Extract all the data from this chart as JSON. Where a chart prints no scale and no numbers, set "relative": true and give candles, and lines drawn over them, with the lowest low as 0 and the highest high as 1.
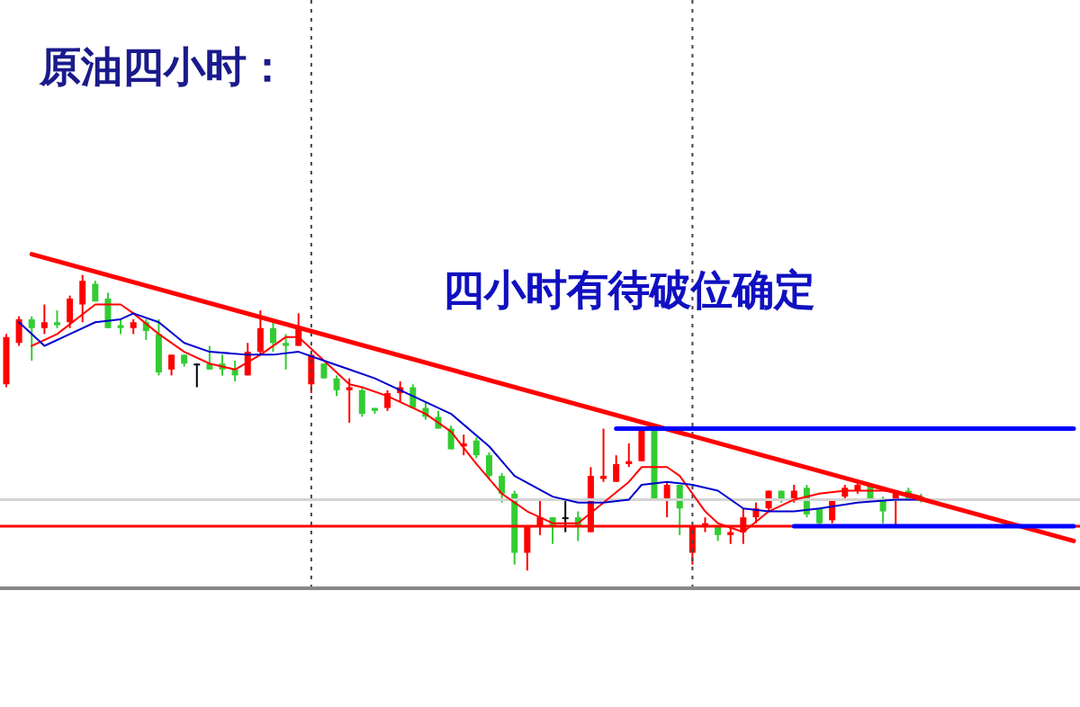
{
  "chart_data": {
    "type": "candlestick",
    "title": "原油四小时：",
    "annotations": [
      "四小时有待破位确定"
    ],
    "relative": true,
    "categories": [
      null,
      null,
      null,
      null,
      null,
      null,
      null,
      null,
      null,
      null,
      null,
      null,
      null,
      null,
      null,
      null,
      null,
      null,
      null,
      null,
      null,
      null,
      null,
      null,
      null,
      null,
      null,
      null,
      null,
      null,
      null,
      null,
      null,
      null,
      null,
      null,
      null,
      null,
      null,
      null,
      null,
      null,
      null,
      null,
      null,
      null,
      null,
      null,
      null,
      null,
      null,
      null,
      null,
      null,
      null,
      null,
      null,
      null,
      null,
      null,
      null,
      null,
      null,
      null,
      null,
      null,
      null,
      null,
      null,
      null,
      null,
      null,
      null,
      null,
      null,
      null,
      null,
      null,
      null,
      null,
      null,
      null,
      null,
      null,
      null
    ],
    "ohlc": [
      [
        0.63,
        0.8,
        0.62,
        0.79
      ],
      [
        0.77,
        0.86,
        0.76,
        0.85
      ],
      [
        0.85,
        0.86,
        0.71,
        0.82
      ],
      [
        0.82,
        0.9,
        0.8,
        0.84
      ],
      [
        0.84,
        0.88,
        0.82,
        0.83
      ],
      [
        0.84,
        0.93,
        0.82,
        0.92
      ],
      [
        0.9,
        1,
        0.84,
        0.98
      ],
      [
        0.97,
        0.98,
        0.91,
        0.91
      ],
      [
        0.92,
        0.94,
        0.82,
        0.82
      ],
      [
        0.83,
        0.85,
        0.8,
        0.82
      ],
      [
        0.82,
        0.85,
        0.8,
        0.84
      ],
      [
        0.84,
        0.85,
        0.78,
        0.81
      ],
      [
        0.8,
        0.85,
        0.66,
        0.67
      ],
      [
        0.68,
        0.73,
        0.66,
        0.73
      ],
      [
        0.73,
        0.73,
        0.69,
        0.7
      ],
      [
        0.7,
        0.7,
        0.62,
        0.7
      ],
      [
        0.7,
        0.76,
        0.68,
        0.68
      ],
      [
        0.7,
        0.73,
        0.66,
        0.68
      ],
      [
        0.68,
        0.71,
        0.64,
        0.66
      ],
      [
        0.66,
        0.77,
        0.66,
        0.74
      ],
      [
        0.74,
        0.88,
        0.73,
        0.82
      ],
      [
        0.82,
        0.85,
        0.74,
        0.77
      ],
      [
        0.77,
        0.8,
        0.68,
        0.76
      ],
      [
        0.76,
        0.87,
        0.76,
        0.82
      ],
      [
        0.63,
        0.73,
        0.6,
        0.73
      ],
      [
        0.7,
        0.7,
        0.65,
        0.65
      ],
      [
        0.65,
        0.66,
        0.59,
        0.61
      ],
      [
        0.61,
        0.65,
        0.5,
        0.62
      ],
      [
        0.61,
        0.62,
        0.52,
        0.53
      ],
      [
        0.55,
        0.55,
        0.53,
        0.54
      ],
      [
        0.55,
        0.61,
        0.54,
        0.6
      ],
      [
        0.6,
        0.64,
        0.57,
        0.62
      ],
      [
        0.62,
        0.63,
        0.55,
        0.55
      ],
      [
        0.55,
        0.57,
        0.51,
        0.52
      ],
      [
        0.52,
        0.54,
        0.48,
        0.48
      ],
      [
        0.48,
        0.49,
        0.41,
        0.41
      ],
      [
        0.42,
        0.46,
        0.39,
        0.43
      ],
      [
        0.44,
        0.45,
        0.38,
        0.39
      ],
      [
        0.39,
        0.4,
        0.31,
        0.32
      ],
      [
        0.32,
        0.33,
        0.23,
        0.26
      ],
      [
        0.26,
        0.27,
        0.02,
        0.06
      ],
      [
        0.06,
        0.15,
        0,
        0.15
      ],
      [
        0.15,
        0.24,
        0.12,
        0.18
      ],
      [
        0.18,
        0.18,
        0.09,
        0.15
      ],
      [
        0.18,
        0.24,
        0.13,
        0.18
      ],
      [
        0.18,
        0.2,
        0.1,
        0.15
      ],
      [
        0.13,
        0.35,
        0.13,
        0.32
      ],
      [
        0.31,
        0.48,
        0.3,
        0.32
      ],
      [
        0.3,
        0.39,
        0.3,
        0.36
      ],
      [
        0.36,
        0.43,
        0.35,
        0.37
      ],
      [
        0.37,
        0.48,
        0.37,
        0.48
      ],
      [
        0.48,
        0.49,
        0.24,
        0.24
      ],
      [
        0.24,
        0.3,
        0.18,
        0.29
      ],
      [
        0.29,
        0.29,
        0.12,
        0.21
      ],
      [
        0.06,
        0.15,
        0.02,
        0.15
      ],
      [
        0.15,
        0.18,
        0.13,
        0.16
      ],
      [
        0.15,
        0.15,
        0.1,
        0.12
      ],
      [
        0.12,
        0.15,
        0.09,
        0.13
      ],
      [
        0.13,
        0.21,
        0.09,
        0.18
      ],
      [
        0.18,
        0.23,
        0.16,
        0.21
      ],
      [
        0.21,
        0.27,
        0.2,
        0.27
      ],
      [
        0.27,
        0.27,
        0.23,
        0.24
      ],
      [
        0.24,
        0.29,
        0.23,
        0.27
      ],
      [
        0.28,
        0.29,
        0.18,
        0.19
      ],
      [
        0.21,
        0.21,
        0.15,
        0.16
      ],
      [
        0.17,
        0.24,
        0.16,
        0.24
      ],
      [
        0.25,
        0.29,
        0.24,
        0.28
      ],
      [
        0.27,
        0.3,
        0.26,
        0.29
      ],
      [
        0.29,
        0.29,
        0.24,
        0.24
      ],
      [
        0.24,
        0.25,
        0.16,
        0.2
      ],
      [
        0.24,
        0.27,
        0.15,
        0.27
      ],
      [
        0.27,
        0.28,
        0.24,
        0.24
      ],
      [
        0.25,
        0.26,
        0.23,
        0.24
      ],
      null,
      null,
      null,
      null,
      null,
      null,
      null,
      null,
      null,
      null,
      null,
      null
    ],
    "colors": [
      "#ff0000",
      "#ff0000",
      "#33cc33",
      "#ff0000",
      "#33cc33",
      "#ff0000",
      "#ff0000",
      "#33cc33",
      "#33cc33",
      "#33cc33",
      "#ff0000",
      "#33cc33",
      "#33cc33",
      "#ff0000",
      "#33cc33",
      "#000000",
      "#33cc33",
      "#33cc33",
      "#33cc33",
      "#ff0000",
      "#ff0000",
      "#33cc33",
      "#33cc33",
      "#ff0000",
      "#ff0000",
      "#33cc33",
      "#33cc33",
      "#ff0000",
      "#33cc33",
      "#33cc33",
      "#ff0000",
      "#ff0000",
      "#33cc33",
      "#33cc33",
      "#33cc33",
      "#33cc33",
      "#ff0000",
      "#33cc33",
      "#33cc33",
      "#33cc33",
      "#33cc33",
      "#ff0000",
      "#ff0000",
      "#33cc33",
      "#000000",
      "#33cc33",
      "#ff0000",
      "#ff0000",
      "#ff0000",
      "#ff0000",
      "#ff0000",
      "#33cc33",
      "#ff0000",
      "#33cc33",
      "#ff0000",
      "#ff0000",
      "#33cc33",
      "#ff0000",
      "#ff0000",
      "#ff0000",
      "#ff0000",
      "#33cc33",
      "#ff0000",
      "#33cc33",
      "#33cc33",
      "#ff0000",
      "#ff0000",
      "#ff0000",
      "#33cc33",
      "#33cc33",
      "#ff0000",
      "#33cc33",
      "#33cc33",
      null,
      null,
      null,
      null,
      null,
      null,
      null,
      null,
      null,
      null,
      null,
      null
    ],
    "series": [
      {
        "type": "line",
        "color": "#ff0000",
        "values": [
          null,
          null,
          0.76,
          null,
          0.8,
          null,
          null,
          0.9,
          null,
          0.9,
          0.87,
          null,
          0.8,
          null,
          0.74,
          null,
          0.7,
          null,
          0.68,
          null,
          0.73,
          null,
          0.79,
          0.79,
          null,
          0.71,
          null,
          0.63,
          0.62,
          null,
          0.59,
          null,
          null,
          0.53,
          null,
          0.47,
          null,
          0.36,
          null,
          0.26,
          null,
          0.2,
          null,
          0.16,
          null,
          0.16,
          null,
          0.23,
          null,
          0.3,
          0.35,
          null,
          0.35,
          0.32,
          null,
          0.2,
          0.16,
          null,
          0.13,
          null,
          0.2,
          null,
          0.24,
          null,
          0.26,
          null,
          0.27,
          null,
          null,
          0.27,
          null,
          0.26,
          0.25,
          null,
          null,
          null,
          null,
          null,
          null,
          null,
          null,
          null,
          null,
          null,
          null
        ]
      },
      {
        "type": "line",
        "color": "#0000cc",
        "values": [
          null,
          0.84,
          null,
          0.76,
          null,
          0.8,
          null,
          0.84,
          null,
          0.85,
          0.87,
          null,
          0.84,
          null,
          0.77,
          null,
          0.74,
          null,
          null,
          0.73,
          null,
          0.73,
          null,
          0.74,
          null,
          0.71,
          null,
          0.68,
          null,
          0.65,
          null,
          null,
          0.59,
          null,
          null,
          0.53,
          null,
          null,
          0.42,
          null,
          0.32,
          null,
          null,
          0.25,
          null,
          0.23,
          null,
          0.23,
          null,
          0.24,
          0.29,
          null,
          0.3,
          null,
          0.29,
          null,
          0.27,
          null,
          0.21,
          null,
          0.2,
          null,
          0.2,
          null,
          0.21,
          null,
          null,
          0.23,
          null,
          null,
          0.24,
          null,
          0.24,
          null,
          null,
          null,
          null,
          null,
          null,
          null,
          null,
          null,
          null,
          null,
          null
        ]
      },
      {
        "type": "line",
        "color": "#ff0000",
        "values": [
          null,
          null,
          1.07,
          null,
          null,
          null,
          null,
          null,
          null,
          null,
          null,
          null,
          null,
          null,
          null,
          null,
          null,
          null,
          null,
          null,
          null,
          null,
          null,
          null,
          null,
          null,
          null,
          null,
          null,
          null,
          null,
          null,
          null,
          null,
          null,
          null,
          null,
          null,
          null,
          null,
          null,
          null,
          null,
          null,
          null,
          null,
          null,
          null,
          null,
          null,
          null,
          null,
          null,
          null,
          null,
          null,
          null,
          null,
          null,
          null,
          null,
          null,
          null,
          null,
          null,
          null,
          null,
          null,
          null,
          null,
          null,
          null,
          null,
          null,
          null,
          null,
          null,
          null,
          null,
          null,
          null,
          null,
          null,
          null,
          0.1
        ]
      },
      {
        "type": "line",
        "color": "#0000ff",
        "values": [
          null,
          null,
          null,
          null,
          null,
          null,
          null,
          null,
          null,
          null,
          null,
          null,
          null,
          null,
          null,
          null,
          null,
          null,
          null,
          null,
          null,
          null,
          null,
          null,
          null,
          null,
          null,
          null,
          null,
          null,
          null,
          null,
          null,
          null,
          null,
          null,
          null,
          null,
          null,
          null,
          null,
          null,
          null,
          null,
          null,
          null,
          null,
          null,
          0.48,
          null,
          null,
          null,
          null,
          null,
          null,
          null,
          null,
          null,
          null,
          null,
          null,
          null,
          null,
          null,
          null,
          null,
          null,
          null,
          null,
          null,
          null,
          null,
          null,
          null,
          null,
          null,
          null,
          null,
          null,
          null,
          null,
          null,
          null,
          null,
          0.48
        ]
      },
      {
        "type": "line",
        "color": "#0000ff",
        "values": [
          null,
          null,
          null,
          null,
          null,
          null,
          null,
          null,
          null,
          null,
          null,
          null,
          null,
          null,
          null,
          null,
          null,
          null,
          null,
          null,
          null,
          null,
          null,
          null,
          null,
          null,
          null,
          null,
          null,
          null,
          null,
          null,
          null,
          null,
          null,
          null,
          null,
          null,
          null,
          null,
          null,
          null,
          null,
          null,
          null,
          null,
          null,
          null,
          null,
          null,
          null,
          null,
          null,
          null,
          null,
          null,
          null,
          null,
          null,
          null,
          null,
          null,
          0.15,
          null,
          null,
          null,
          null,
          null,
          null,
          null,
          null,
          null,
          null,
          null,
          null,
          null,
          null,
          null,
          null,
          null,
          null,
          null,
          null,
          null,
          0.15
        ]
      }
    ],
    "ref_lines": [
      {
        "axis": "y",
        "value": 0.24,
        "color": "#d3d3d3"
      },
      {
        "axis": "y",
        "value": 0.15,
        "color": "#ff0000"
      }
    ]
  }
}
